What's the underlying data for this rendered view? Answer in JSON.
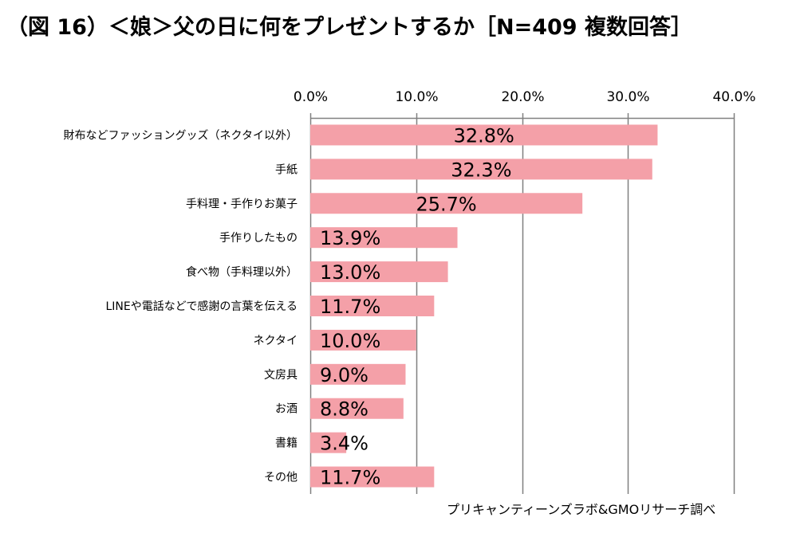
{
  "title": "（図 16）＜娘＞父の日に何をプレゼントするか［N=409 複数回答］",
  "source": "プリキャンティーンズラボ&GMOリサーチ調べ",
  "colors": {
    "bar": "#f4a0a8",
    "grid": "#808080",
    "axis": "#808080"
  },
  "chart_data": {
    "type": "bar",
    "orientation": "horizontal",
    "categories": [
      "財布などファッショングッズ（ネクタイ以外）",
      "手紙",
      "手料理・手作りお菓子",
      "手作りしたもの",
      "食べ物（手料理以外）",
      "LINEや電話などで感謝の言葉を伝える",
      "ネクタイ",
      "文房具",
      "お酒",
      "書籍",
      "その他"
    ],
    "values": [
      32.8,
      32.3,
      25.7,
      13.9,
      13.0,
      11.7,
      10.0,
      9.0,
      8.8,
      3.4,
      11.7
    ],
    "value_labels": [
      "32.8%",
      "32.3%",
      "25.7%",
      "13.9%",
      "13.0%",
      "11.7%",
      "10.0%",
      "9.0%",
      "8.8%",
      "3.4%",
      "11.7%"
    ],
    "xlim": [
      0,
      40
    ],
    "ticks": [
      0,
      10,
      20,
      30,
      40
    ],
    "tick_labels": [
      "0.0%",
      "10.0%",
      "20.0%",
      "30.0%",
      "40.0%"
    ],
    "grid": true,
    "legend": "none"
  }
}
